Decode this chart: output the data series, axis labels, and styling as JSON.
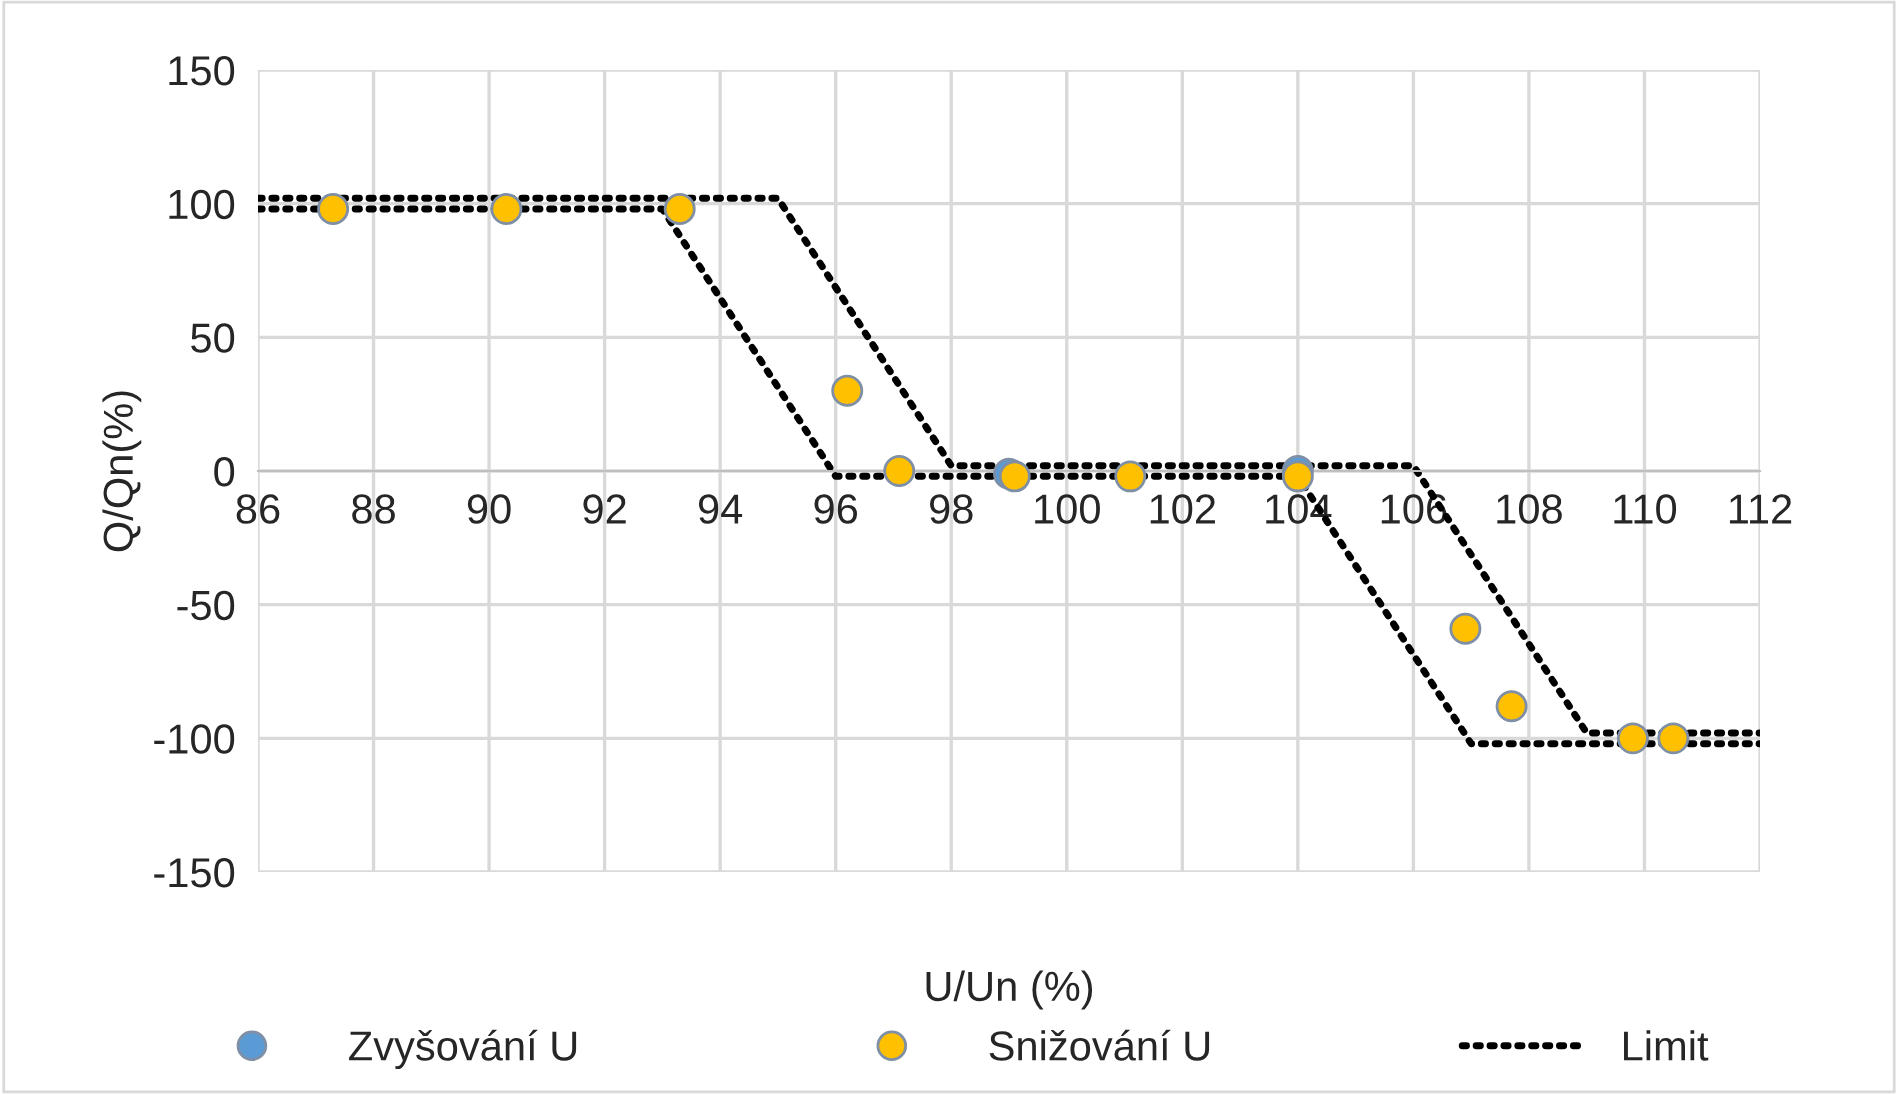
{
  "chart_data": {
    "type": "scatter",
    "xlabel": "U/Un (%)",
    "ylabel": "Q/Qn(%)",
    "xlim": [
      86,
      112
    ],
    "xticks": [
      86,
      88,
      90,
      92,
      94,
      96,
      98,
      100,
      102,
      104,
      106,
      108,
      110,
      112
    ],
    "ylim": [
      -150,
      150
    ],
    "yticks": [
      -150,
      -100,
      -50,
      0,
      50,
      100,
      150
    ],
    "grid": true,
    "legend": "bottom",
    "marker": "circle",
    "series": [
      {
        "name": "Zvyšování U",
        "color": "#5b9bd5",
        "x": [
          99.0,
          104.0
        ],
        "values": [
          -1,
          0
        ]
      },
      {
        "name": "Snižování U",
        "color": "#ffc000",
        "x": [
          87.3,
          90.3,
          93.3,
          96.2,
          97.1,
          99.1,
          101.1,
          104.0,
          106.9,
          107.7,
          109.8,
          110.5
        ],
        "values": [
          98,
          98,
          98,
          30,
          0,
          -2,
          -2,
          -2,
          -59,
          -88,
          -100,
          -100
        ]
      },
      {
        "name": "Limit",
        "type": "line",
        "line_style": "dotted",
        "marker": "none",
        "color": "#000000",
        "x": [
          86,
          95,
          98,
          106,
          109,
          112,
          null,
          86,
          93,
          96,
          104,
          107,
          112
        ],
        "values": [
          102,
          102,
          2,
          2,
          -98,
          -98,
          null,
          98,
          98,
          -2,
          -2,
          -102,
          -102
        ]
      }
    ]
  }
}
